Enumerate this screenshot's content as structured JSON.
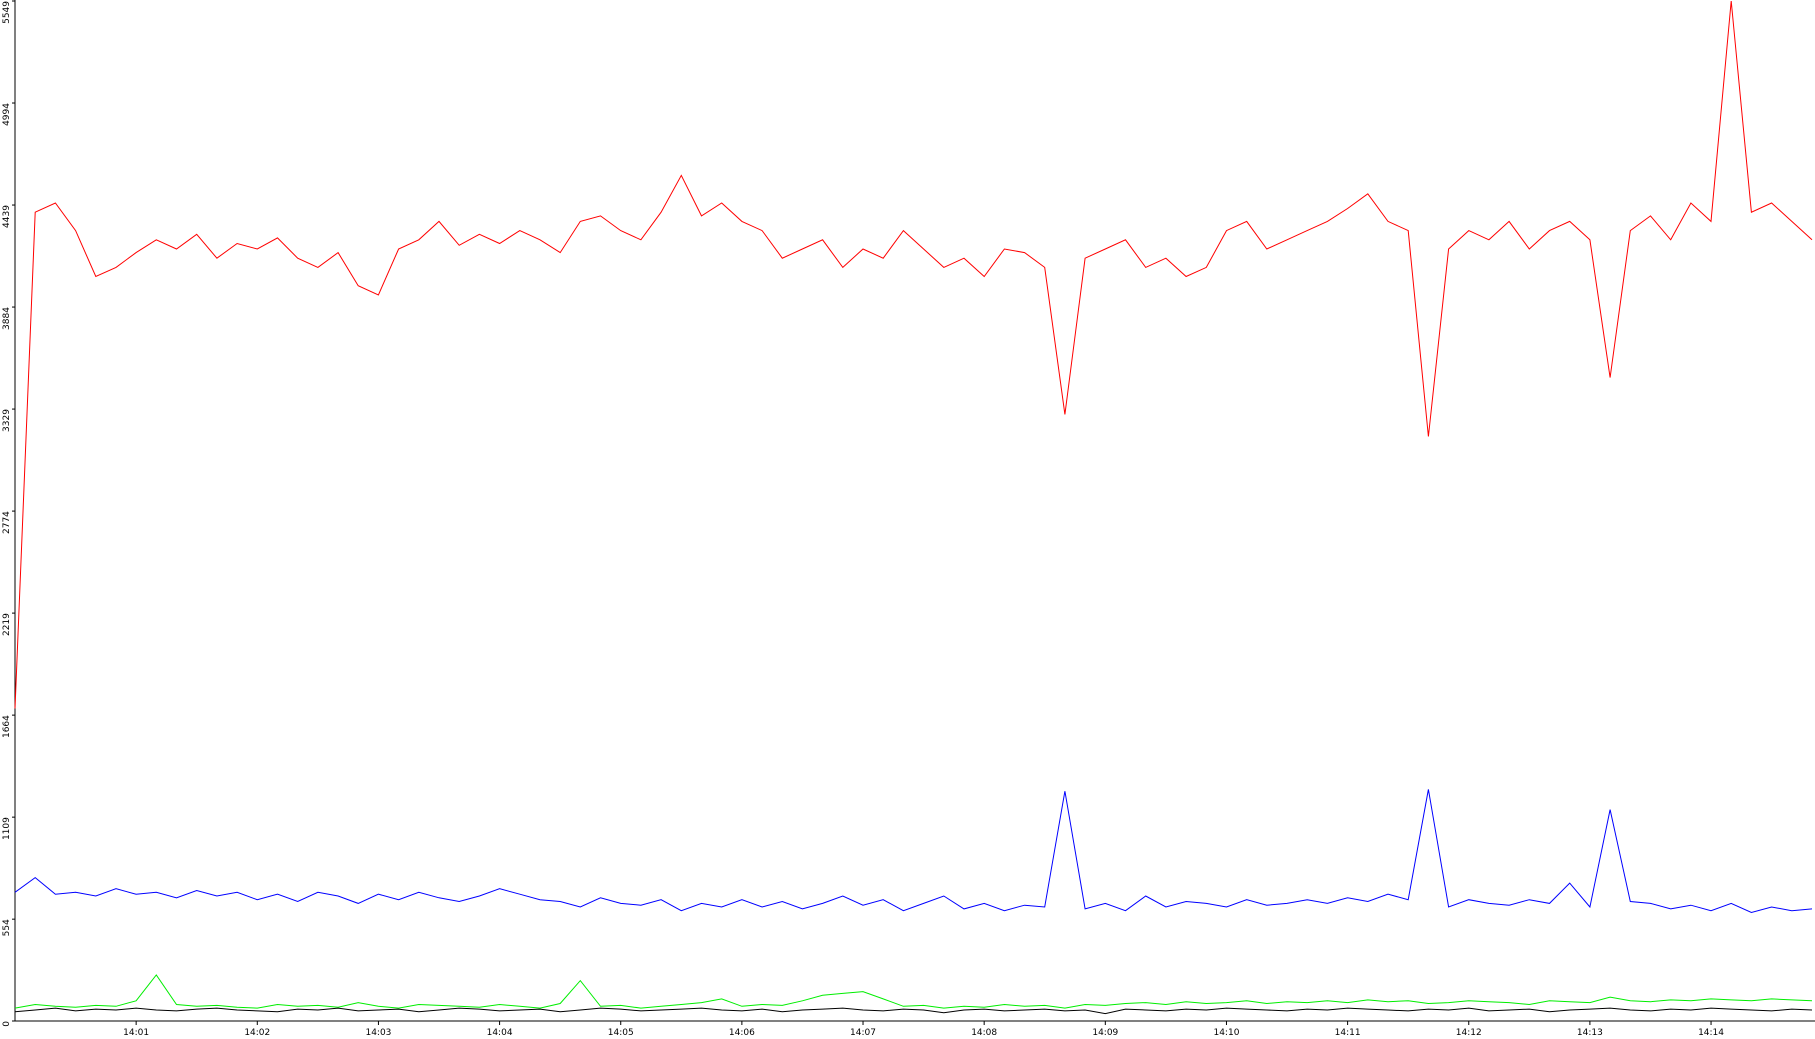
{
  "chart_data": {
    "type": "line",
    "categories": [
      null,
      null,
      null,
      null,
      null,
      null,
      "14:01",
      null,
      null,
      null,
      null,
      null,
      "14:02",
      null,
      null,
      null,
      null,
      null,
      "14:03",
      null,
      null,
      null,
      null,
      null,
      "14:04",
      null,
      null,
      null,
      null,
      null,
      "14:05",
      null,
      null,
      null,
      null,
      null,
      "14:06",
      null,
      null,
      null,
      null,
      null,
      "14:07",
      null,
      null,
      null,
      null,
      null,
      "14:08",
      null,
      null,
      null,
      null,
      null,
      "14:09",
      null,
      null,
      null,
      null,
      null,
      "14:10",
      null,
      null,
      null,
      null,
      null,
      "14:11",
      null,
      null,
      null,
      null,
      null,
      "14:12",
      null,
      null,
      null,
      null,
      null,
      "14:13",
      null,
      null,
      null,
      null,
      null,
      "14:14",
      null,
      null,
      null,
      null,
      null
    ],
    "series": [
      {
        "color": "#ff0000",
        "values": [
          1700,
          4400,
          4450,
          4300,
          4050,
          4100,
          4180,
          4250,
          4200,
          4280,
          4150,
          4230,
          4200,
          4260,
          4150,
          4100,
          4180,
          4000,
          3950,
          4200,
          4250,
          4350,
          4220,
          4280,
          4230,
          4300,
          4250,
          4180,
          4350,
          4380,
          4300,
          4250,
          4400,
          4600,
          4380,
          4450,
          4350,
          4300,
          4150,
          4200,
          4250,
          4100,
          4200,
          4150,
          4300,
          4200,
          4100,
          4150,
          4050,
          4200,
          4180,
          4100,
          3300,
          4150,
          4200,
          4250,
          4100,
          4150,
          4050,
          4100,
          4300,
          4350,
          4200,
          4250,
          4300,
          4350,
          4420,
          4500,
          4350,
          4300,
          3180,
          4200,
          4300,
          4250,
          4350,
          4200,
          4300,
          4350,
          4250,
          3500,
          4300,
          4380,
          4250,
          4450,
          4350,
          5549,
          4400,
          4450,
          4350,
          4250
        ]
      },
      {
        "color": "#0000ff",
        "values": [
          700,
          780,
          690,
          700,
          680,
          720,
          690,
          700,
          670,
          710,
          680,
          700,
          660,
          690,
          650,
          700,
          680,
          640,
          690,
          660,
          700,
          670,
          650,
          680,
          720,
          690,
          660,
          650,
          620,
          670,
          640,
          630,
          660,
          600,
          640,
          620,
          660,
          620,
          650,
          610,
          640,
          680,
          630,
          660,
          600,
          640,
          680,
          610,
          640,
          600,
          630,
          620,
          1250,
          610,
          640,
          600,
          680,
          620,
          650,
          640,
          620,
          660,
          630,
          640,
          660,
          640,
          670,
          650,
          690,
          660,
          1260,
          620,
          660,
          640,
          630,
          660,
          640,
          750,
          620,
          1150,
          650,
          640,
          610,
          630,
          600,
          640,
          590,
          620,
          600,
          610
        ]
      },
      {
        "color": "#00ee00",
        "values": [
          70,
          90,
          80,
          75,
          85,
          80,
          110,
          250,
          90,
          80,
          85,
          75,
          70,
          90,
          80,
          85,
          75,
          100,
          80,
          70,
          90,
          85,
          80,
          75,
          90,
          80,
          70,
          95,
          220,
          80,
          85,
          70,
          80,
          90,
          100,
          120,
          80,
          90,
          85,
          110,
          140,
          150,
          160,
          120,
          80,
          85,
          70,
          80,
          75,
          90,
          80,
          85,
          70,
          90,
          85,
          95,
          100,
          90,
          105,
          95,
          100,
          110,
          95,
          105,
          100,
          110,
          100,
          115,
          105,
          110,
          95,
          100,
          110,
          105,
          100,
          90,
          110,
          105,
          100,
          130,
          110,
          105,
          115,
          110,
          120,
          115,
          110,
          120,
          115,
          110
        ]
      },
      {
        "color": "#000000",
        "values": [
          50,
          60,
          70,
          55,
          65,
          60,
          70,
          60,
          55,
          65,
          70,
          60,
          55,
          50,
          65,
          60,
          70,
          55,
          60,
          65,
          50,
          60,
          70,
          65,
          55,
          60,
          65,
          50,
          60,
          70,
          65,
          55,
          60,
          65,
          70,
          60,
          55,
          65,
          50,
          60,
          65,
          70,
          60,
          55,
          65,
          60,
          45,
          60,
          65,
          55,
          60,
          65,
          55,
          60,
          40,
          65,
          60,
          55,
          65,
          60,
          70,
          65,
          60,
          55,
          65,
          60,
          70,
          65,
          60,
          55,
          65,
          60,
          70,
          55,
          60,
          65,
          50,
          60,
          65,
          70,
          60,
          55,
          65,
          60,
          70,
          65,
          60,
          55,
          65,
          60
        ]
      }
    ],
    "ylim": [
      0,
      5549
    ],
    "yticks": [
      0,
      554,
      1109,
      1664,
      2219,
      2774,
      3329,
      3884,
      4439,
      4994,
      5549
    ]
  }
}
